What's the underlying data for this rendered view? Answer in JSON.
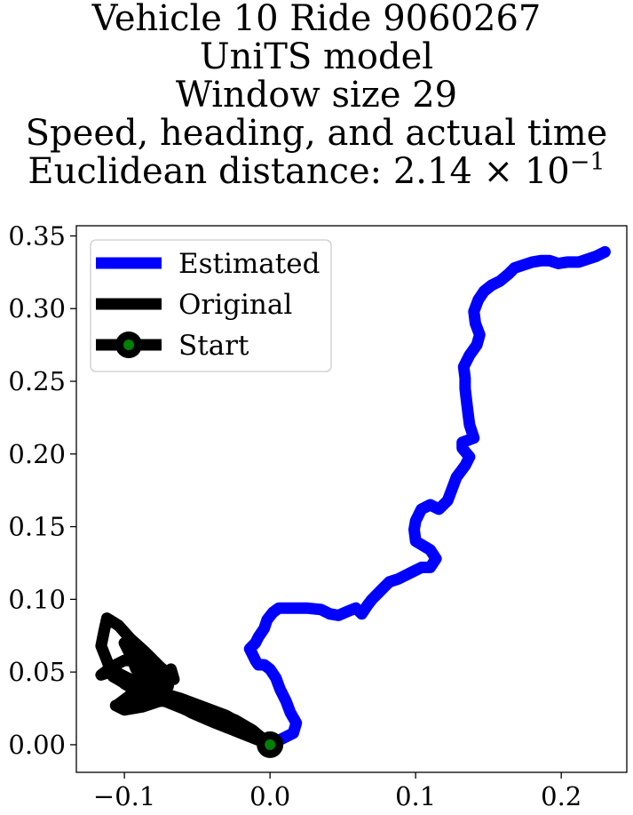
{
  "title_lines": [
    "Vehicle 10 Ride 9060267",
    "UniTS model",
    "Window size 29",
    "Speed, heading, and actual time",
    "Euclidean distance: 2.14 × 10"
  ],
  "title_exponent": "−1",
  "colors": {
    "estimated": "#0000ff",
    "original": "#000000",
    "start_outer": "#000000",
    "start_inner": "#008000"
  },
  "chart_data": {
    "type": "line",
    "xlim": [
      -0.133,
      0.245
    ],
    "ylim": [
      -0.019,
      0.357
    ],
    "x_ticks": [
      -0.1,
      0.0,
      0.1,
      0.2
    ],
    "x_tick_labels": [
      "−0.1",
      "0.0",
      "0.1",
      "0.2"
    ],
    "y_ticks": [
      0.0,
      0.05,
      0.1,
      0.15,
      0.2,
      0.25,
      0.3,
      0.35
    ],
    "y_tick_labels": [
      "0.00",
      "0.05",
      "0.10",
      "0.15",
      "0.20",
      "0.25",
      "0.30",
      "0.35"
    ],
    "grid": false,
    "legend_position": "upper-left",
    "legend": [
      "Estimated",
      "Original",
      "Start"
    ],
    "series": [
      {
        "name": "Estimated",
        "points": [
          [
            0.0,
            0.0
          ],
          [
            0.008,
            0.004
          ],
          [
            0.016,
            0.008
          ],
          [
            0.018,
            0.015
          ],
          [
            0.014,
            0.022
          ],
          [
            0.011,
            0.03
          ],
          [
            0.007,
            0.038
          ],
          [
            0.004,
            0.046
          ],
          [
            0.0,
            0.052
          ],
          [
            -0.004,
            0.055
          ],
          [
            -0.008,
            0.055
          ],
          [
            -0.01,
            0.058
          ],
          [
            -0.012,
            0.062
          ],
          [
            -0.014,
            0.066
          ],
          [
            -0.01,
            0.07
          ],
          [
            -0.008,
            0.074
          ],
          [
            -0.004,
            0.08
          ],
          [
            -0.002,
            0.086
          ],
          [
            0.002,
            0.091
          ],
          [
            0.006,
            0.094
          ],
          [
            0.015,
            0.094
          ],
          [
            0.025,
            0.094
          ],
          [
            0.035,
            0.093
          ],
          [
            0.041,
            0.09
          ],
          [
            0.047,
            0.089
          ],
          [
            0.054,
            0.092
          ],
          [
            0.059,
            0.094
          ],
          [
            0.063,
            0.09
          ],
          [
            0.067,
            0.096
          ],
          [
            0.07,
            0.1
          ],
          [
            0.076,
            0.106
          ],
          [
            0.082,
            0.112
          ],
          [
            0.088,
            0.114
          ],
          [
            0.096,
            0.118
          ],
          [
            0.104,
            0.122
          ],
          [
            0.11,
            0.122
          ],
          [
            0.114,
            0.128
          ],
          [
            0.11,
            0.134
          ],
          [
            0.1,
            0.14
          ],
          [
            0.099,
            0.148
          ],
          [
            0.1,
            0.154
          ],
          [
            0.104,
            0.162
          ],
          [
            0.11,
            0.165
          ],
          [
            0.116,
            0.162
          ],
          [
            0.122,
            0.168
          ],
          [
            0.125,
            0.176
          ],
          [
            0.128,
            0.184
          ],
          [
            0.134,
            0.192
          ],
          [
            0.137,
            0.198
          ],
          [
            0.132,
            0.204
          ],
          [
            0.132,
            0.208
          ],
          [
            0.14,
            0.211
          ],
          [
            0.137,
            0.22
          ],
          [
            0.136,
            0.228
          ],
          [
            0.135,
            0.236
          ],
          [
            0.134,
            0.245
          ],
          [
            0.134,
            0.252
          ],
          [
            0.133,
            0.26
          ],
          [
            0.137,
            0.268
          ],
          [
            0.142,
            0.275
          ],
          [
            0.144,
            0.282
          ],
          [
            0.141,
            0.29
          ],
          [
            0.14,
            0.298
          ],
          [
            0.143,
            0.306
          ],
          [
            0.147,
            0.312
          ],
          [
            0.152,
            0.316
          ],
          [
            0.158,
            0.319
          ],
          [
            0.164,
            0.324
          ],
          [
            0.168,
            0.328
          ],
          [
            0.174,
            0.33
          ],
          [
            0.18,
            0.332
          ],
          [
            0.186,
            0.333
          ],
          [
            0.192,
            0.333
          ],
          [
            0.198,
            0.331
          ],
          [
            0.204,
            0.332
          ],
          [
            0.212,
            0.332
          ],
          [
            0.218,
            0.334
          ],
          [
            0.224,
            0.336
          ],
          [
            0.23,
            0.339
          ]
        ]
      },
      {
        "name": "Original",
        "points": [
          [
            0.0,
            0.0
          ],
          [
            -0.02,
            0.008
          ],
          [
            -0.04,
            0.016
          ],
          [
            -0.06,
            0.025
          ],
          [
            -0.08,
            0.033
          ],
          [
            -0.096,
            0.04
          ],
          [
            -0.108,
            0.047
          ],
          [
            -0.112,
            0.058
          ],
          [
            -0.116,
            0.068
          ],
          [
            -0.114,
            0.078
          ],
          [
            -0.112,
            0.087
          ],
          [
            -0.104,
            0.082
          ],
          [
            -0.096,
            0.073
          ],
          [
            -0.086,
            0.064
          ],
          [
            -0.076,
            0.054
          ],
          [
            -0.066,
            0.045
          ],
          [
            -0.068,
            0.052
          ],
          [
            -0.07,
            0.04
          ],
          [
            -0.08,
            0.035
          ],
          [
            -0.094,
            0.03
          ],
          [
            -0.104,
            0.028
          ],
          [
            -0.096,
            0.034
          ],
          [
            -0.086,
            0.038
          ],
          [
            -0.076,
            0.044
          ],
          [
            -0.068,
            0.032
          ],
          [
            -0.064,
            0.028
          ],
          [
            -0.054,
            0.022
          ],
          [
            -0.04,
            0.016
          ],
          [
            -0.026,
            0.011
          ],
          [
            -0.012,
            0.005
          ],
          [
            0.0,
            0.0
          ],
          [
            -0.016,
            0.012
          ],
          [
            -0.03,
            0.02
          ],
          [
            -0.046,
            0.026
          ],
          [
            -0.062,
            0.032
          ],
          [
            -0.076,
            0.036
          ],
          [
            -0.09,
            0.04
          ],
          [
            -0.1,
            0.046
          ],
          [
            -0.11,
            0.05
          ],
          [
            -0.116,
            0.048
          ],
          [
            -0.108,
            0.054
          ],
          [
            -0.1,
            0.058
          ],
          [
            -0.09,
            0.058
          ],
          [
            -0.082,
            0.05
          ],
          [
            -0.088,
            0.042
          ],
          [
            -0.098,
            0.046
          ],
          [
            -0.106,
            0.05
          ],
          [
            -0.1,
            0.042
          ],
          [
            -0.09,
            0.036
          ],
          [
            -0.08,
            0.034
          ],
          [
            -0.072,
            0.04
          ],
          [
            -0.082,
            0.046
          ],
          [
            -0.092,
            0.052
          ],
          [
            -0.096,
            0.062
          ],
          [
            -0.1,
            0.07
          ],
          [
            -0.092,
            0.065
          ],
          [
            -0.086,
            0.058
          ],
          [
            -0.078,
            0.048
          ],
          [
            -0.07,
            0.04
          ],
          [
            -0.076,
            0.03
          ],
          [
            -0.088,
            0.026
          ],
          [
            -0.1,
            0.024
          ],
          [
            -0.106,
            0.027
          ],
          [
            -0.096,
            0.03
          ],
          [
            -0.082,
            0.03
          ],
          [
            -0.066,
            0.03
          ],
          [
            -0.05,
            0.026
          ],
          [
            -0.036,
            0.022
          ],
          [
            -0.024,
            0.017
          ],
          [
            -0.012,
            0.01
          ],
          [
            0.0,
            0.0
          ]
        ]
      }
    ],
    "start_point": [
      0.0,
      0.0
    ]
  }
}
